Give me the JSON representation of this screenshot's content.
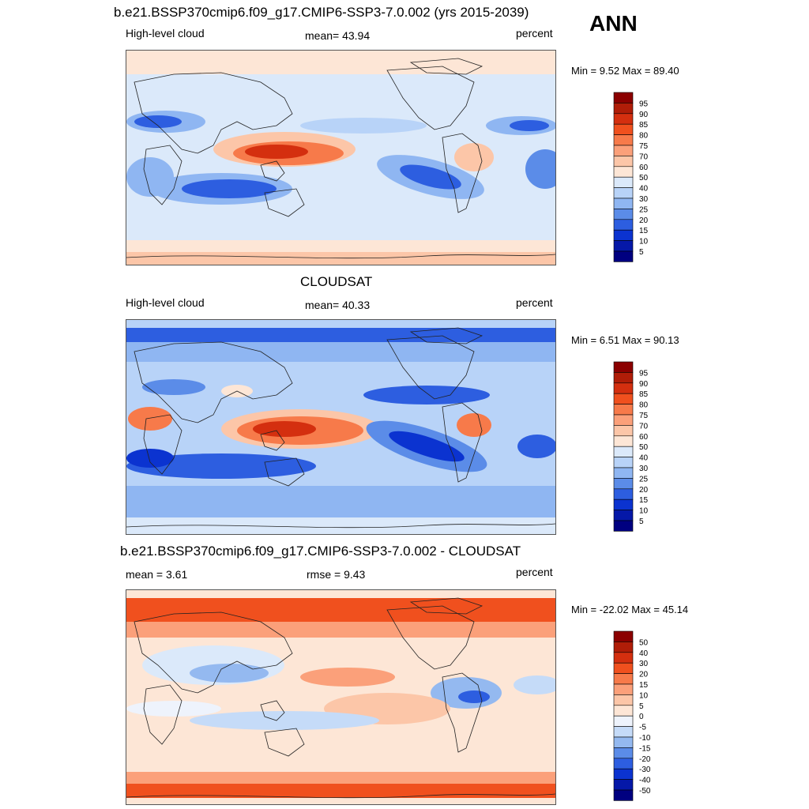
{
  "season": "ANN",
  "panels": [
    {
      "title": "b.e21.BSSP370cmip6.f09_g17.CMIP6-SSP3-7.0.002 (yrs 2015-2039)",
      "left_label": "High-level cloud",
      "center_label": "mean=  43.94",
      "right_label": "percent",
      "minmax": "Min =   9.52 Max =  89.40",
      "colorbar": {
        "ticks": [
          "95",
          "90",
          "85",
          "80",
          "75",
          "70",
          "60",
          "50",
          "40",
          "30",
          "25",
          "20",
          "15",
          "10",
          "5"
        ],
        "colors": [
          "#8b0000",
          "#b01d08",
          "#d42f0f",
          "#f0501e",
          "#f77a4a",
          "#fba07a",
          "#fcc6a8",
          "#fde6d6",
          "#dbe9fa",
          "#b8d3f8",
          "#8fb6f2",
          "#5b8ce8",
          "#2d5ee0",
          "#0b33d0",
          "#0518a8",
          "#000080"
        ]
      }
    },
    {
      "title": "CLOUDSAT",
      "left_label": "High-level cloud",
      "center_label": "mean=  40.33",
      "right_label": "percent",
      "minmax": "Min =   6.51 Max =  90.13",
      "colorbar": {
        "ticks": [
          "95",
          "90",
          "85",
          "80",
          "75",
          "70",
          "60",
          "50",
          "40",
          "30",
          "25",
          "20",
          "15",
          "10",
          "5"
        ],
        "colors": [
          "#8b0000",
          "#b01d08",
          "#d42f0f",
          "#f0501e",
          "#f77a4a",
          "#fba07a",
          "#fcc6a8",
          "#fde6d6",
          "#dbe9fa",
          "#b8d3f8",
          "#8fb6f2",
          "#5b8ce8",
          "#2d5ee0",
          "#0b33d0",
          "#0518a8",
          "#000080"
        ]
      }
    },
    {
      "title": "b.e21.BSSP370cmip6.f09_g17.CMIP6-SSP3-7.0.002 - CLOUDSAT",
      "left_label": "mean =   3.61",
      "center_label": "rmse =   9.43",
      "right_label": "percent",
      "minmax": "Min = -22.02 Max =  45.14",
      "colorbar": {
        "ticks": [
          "50",
          "40",
          "30",
          "20",
          "15",
          "10",
          "5",
          "0",
          "-5",
          "-10",
          "-15",
          "-20",
          "-30",
          "-40",
          "-50"
        ],
        "colors": [
          "#8b0000",
          "#b01d08",
          "#d42f0f",
          "#f0501e",
          "#f77a4a",
          "#fba07a",
          "#fcc6a8",
          "#fde6d6",
          "#eef3fc",
          "#c5dbf8",
          "#94b9f0",
          "#5b8ce8",
          "#2d5ee0",
          "#0b33d0",
          "#0518a8",
          "#000080"
        ]
      }
    }
  ]
}
